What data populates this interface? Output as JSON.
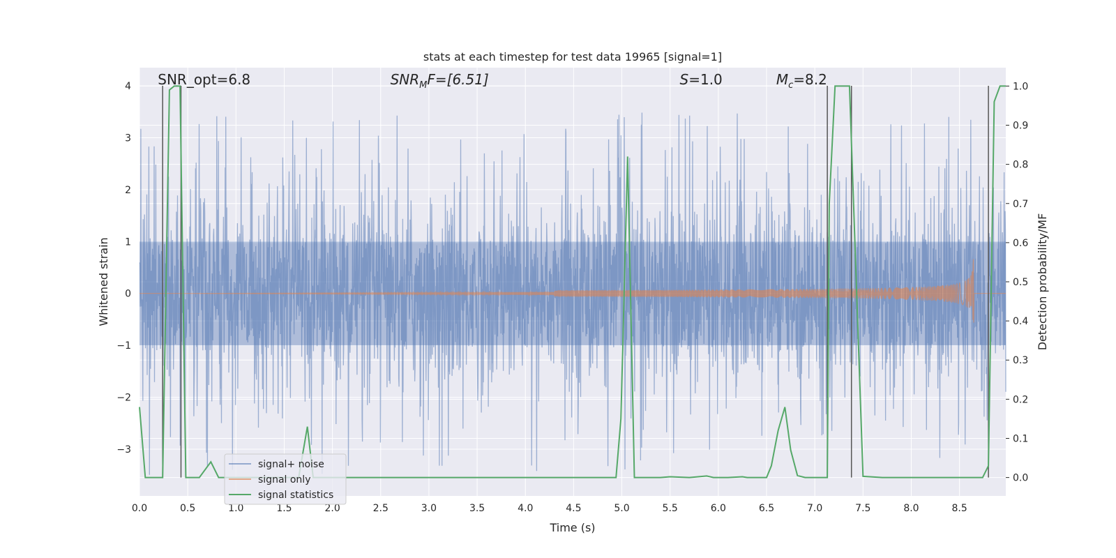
{
  "chart_data": {
    "type": "line",
    "title": "stats at each timestep for test data 19965 [signal=1]",
    "xlabel": "Time (s)",
    "ylabel": "Whitened strain",
    "ylabel_right": "Detection probability/MF",
    "xlim": [
      0.0,
      8.98
    ],
    "ylim": [
      -3.9,
      4.35
    ],
    "ylim_right": [
      -0.047,
      1.047
    ],
    "x_ticks": [
      0.0,
      0.5,
      1.0,
      1.5,
      2.0,
      2.5,
      3.0,
      3.5,
      4.0,
      4.5,
      5.0,
      5.5,
      6.0,
      6.5,
      7.0,
      7.5,
      8.0,
      8.5
    ],
    "x_tick_labels": [
      "0.0",
      "0.5",
      "1.0",
      "1.5",
      "2.0",
      "2.5",
      "3.0",
      "3.5",
      "4.0",
      "4.5",
      "5.0",
      "5.5",
      "6.0",
      "6.5",
      "7.0",
      "7.5",
      "8.0",
      "8.5"
    ],
    "y_ticks": [
      4,
      3,
      2,
      1,
      0,
      -1,
      -2,
      -3
    ],
    "y_tick_labels": [
      "4",
      "3",
      "2",
      "1",
      "0",
      "−1",
      "−2",
      "−3"
    ],
    "y_right_ticks": [
      1.0,
      0.9,
      0.8,
      0.7,
      0.6,
      0.5,
      0.4,
      0.3,
      0.2,
      0.1,
      0.0
    ],
    "y_right_tick_labels": [
      "1.0",
      "0.9",
      "0.8",
      "0.7",
      "0.6",
      "0.5",
      "0.4",
      "0.3",
      "0.2",
      "0.1",
      "0.0"
    ],
    "annotations": {
      "snr_opt": "SNR_opt=6.8",
      "snr_mf_sym": "SNR",
      "snr_mf_sub": "M",
      "snr_mf_rest": "F=[6.51]",
      "s_sym": "S",
      "s_rest": "=1.0",
      "mc_sym": "M",
      "mc_sub": "c",
      "mc_rest": "=8.2"
    },
    "annotation_x": [
      0.19,
      2.6,
      5.6,
      6.6
    ],
    "vertical_lines_x": [
      0.24,
      0.43,
      7.13,
      7.38,
      8.8
    ],
    "legend": {
      "position": "lower-left",
      "entries": [
        "signal+ noise",
        "signal only",
        "signal statistics"
      ]
    },
    "series": [
      {
        "name": "signal+ noise",
        "axis": "left",
        "color": "#4c72b0",
        "note": "dense whitened noise, roughly ±1.7 with spikes to about ±3.5"
      },
      {
        "name": "signal only",
        "axis": "left",
        "color": "#dd8452",
        "chirp_start": 4.3,
        "merger": 8.65,
        "peak_amplitude": 0.9
      },
      {
        "name": "signal statistics",
        "axis": "right",
        "color": "#55a868",
        "x": [
          0.0,
          0.06,
          0.24,
          0.31,
          0.36,
          0.42,
          0.48,
          0.5,
          0.62,
          0.74,
          0.82,
          0.9,
          1.0,
          1.1,
          1.2,
          1.5,
          1.65,
          1.74,
          1.8,
          1.9,
          2.5,
          3.0,
          3.5,
          4.0,
          4.5,
          4.94,
          4.99,
          5.06,
          5.13,
          5.2,
          5.4,
          5.5,
          5.7,
          5.88,
          5.95,
          6.1,
          6.25,
          6.3,
          6.5,
          6.55,
          6.62,
          6.69,
          6.75,
          6.82,
          6.9,
          7.0,
          7.13,
          7.15,
          7.21,
          7.26,
          7.36,
          7.5,
          7.7,
          8.0,
          8.5,
          8.74,
          8.8,
          8.86,
          8.92,
          8.98
        ],
        "values": [
          0.18,
          0.0,
          0.0,
          0.99,
          1.0,
          1.0,
          0.0,
          0.0,
          0.0,
          0.04,
          0.0,
          0.0,
          0.0,
          0.0,
          0.0,
          0.0,
          0.0,
          0.13,
          0.0,
          0.0,
          0.0,
          0.0,
          0.0,
          0.0,
          0.0,
          0.0,
          0.15,
          0.82,
          0.0,
          0.0,
          0.0,
          0.002,
          0.0,
          0.004,
          0.0,
          0.0,
          0.002,
          0.0,
          0.0,
          0.03,
          0.12,
          0.18,
          0.07,
          0.005,
          0.0,
          0.0,
          0.0,
          0.7,
          1.0,
          1.0,
          1.0,
          0.003,
          0.0,
          0.0,
          0.0,
          0.0,
          0.03,
          0.96,
          1.0,
          1.0
        ]
      }
    ]
  }
}
